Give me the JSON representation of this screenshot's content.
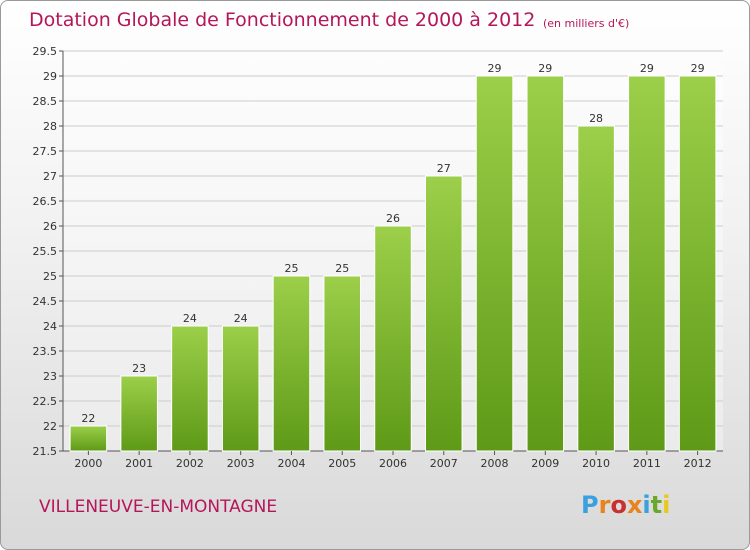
{
  "chart_data": {
    "type": "bar",
    "title": "Dotation Globale de Fonctionnement de 2000 à 2012",
    "unit_note": "(en milliers d'€)",
    "categories": [
      "2000",
      "2001",
      "2002",
      "2003",
      "2004",
      "2005",
      "2006",
      "2007",
      "2008",
      "2009",
      "2010",
      "2011",
      "2012"
    ],
    "values": [
      22,
      23,
      24,
      24,
      25,
      25,
      26,
      27,
      29,
      29,
      28,
      29,
      29
    ],
    "ylim": [
      21.5,
      29.5
    ],
    "yticks": [
      "21.5",
      "22",
      "22.5",
      "23",
      "23.5",
      "24",
      "24.5",
      "25",
      "25.5",
      "26",
      "26.5",
      "27",
      "27.5",
      "28",
      "28.5",
      "29",
      "29.5"
    ],
    "xlabel": "",
    "ylabel": "",
    "grid": true,
    "colors": {
      "bar_top": "#9ccf4a",
      "bar_bottom": "#5e9a17",
      "bar_edge": "#ffffff",
      "grid": "#cccccc",
      "title": "#b5165a"
    }
  },
  "footer": {
    "commune": "VILLENEUVE-EN-MONTAGNE",
    "logo_text": "Proxiti",
    "logo_colors": [
      "#3aa0e0",
      "#e8831e",
      "#c93030",
      "#e8831e",
      "#3aa0e0",
      "#69a82c",
      "#e8c81e"
    ]
  }
}
